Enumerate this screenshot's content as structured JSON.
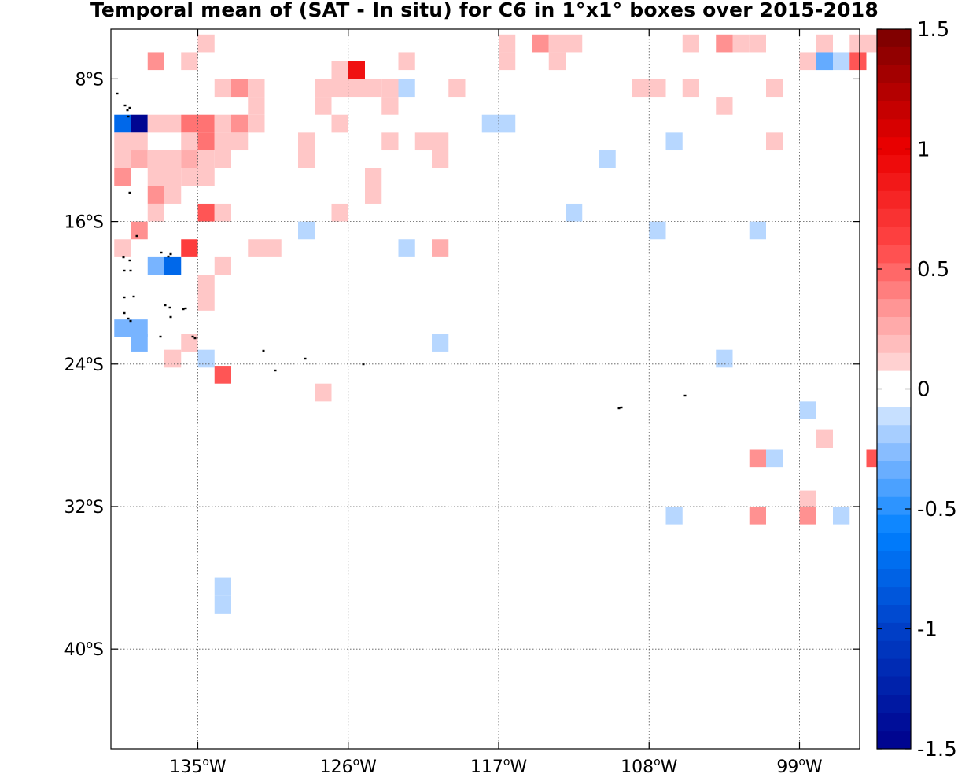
{
  "title": "Temporal mean of (SAT - In situ) for C6 in 1°x1° boxes over 2015-2018",
  "lat_ticks": [
    {
      "deg": "8",
      "hem": "S",
      "lat": -8
    },
    {
      "deg": "16",
      "hem": "S",
      "lat": -16
    },
    {
      "deg": "24",
      "hem": "S",
      "lat": -24
    },
    {
      "deg": "32",
      "hem": "S",
      "lat": -32
    },
    {
      "deg": "40",
      "hem": "S",
      "lat": -40
    }
  ],
  "lon_ticks": [
    {
      "deg": "135",
      "hem": "W",
      "lon": -135
    },
    {
      "deg": "126",
      "hem": "W",
      "lon": -126
    },
    {
      "deg": "117",
      "hem": "W",
      "lon": -117
    },
    {
      "deg": "108",
      "hem": "W",
      "lon": -108
    },
    {
      "deg": "99",
      "hem": "W",
      "lon": -99
    }
  ],
  "extent": {
    "lon_min": -140.2,
    "lon_max": -95.4,
    "lat_min": -45.6,
    "lat_max": -5.2
  },
  "colorbar": {
    "min": -1.5,
    "max": 1.5,
    "steps": 40,
    "tick_labels": [
      "1.5",
      "1",
      "0.5",
      "0",
      "-0.5",
      "-1",
      "-1.5"
    ],
    "tick_values": [
      1.5,
      1,
      0.5,
      0,
      -0.5,
      -1,
      -1.5
    ]
  },
  "chart_data": {
    "type": "heatmap",
    "title": "Temporal mean of (SAT - In situ) for C6 in 1°x1° boxes over 2015-2018",
    "xlabel": "",
    "ylabel": "",
    "cell_size_deg": 1,
    "value_range": [
      -1.5,
      1.5
    ],
    "cells": [
      {
        "lon": -134.5,
        "lat": -6.0,
        "v": 0.15
      },
      {
        "lon": -116.5,
        "lat": -6.0,
        "v": 0.15
      },
      {
        "lon": -114.5,
        "lat": -6.0,
        "v": 0.35
      },
      {
        "lon": -113.5,
        "lat": -6.0,
        "v": 0.15
      },
      {
        "lon": -112.5,
        "lat": -6.0,
        "v": 0.15
      },
      {
        "lon": -105.5,
        "lat": -6.0,
        "v": 0.15
      },
      {
        "lon": -103.5,
        "lat": -6.0,
        "v": 0.35
      },
      {
        "lon": -102.5,
        "lat": -6.0,
        "v": 0.15
      },
      {
        "lon": -101.5,
        "lat": -6.0,
        "v": 0.15
      },
      {
        "lon": -97.5,
        "lat": -6.0,
        "v": 0.15
      },
      {
        "lon": -95.5,
        "lat": -6.0,
        "v": 0.15
      },
      {
        "lon": -94.5,
        "lat": -6.0,
        "v": 0.15
      },
      {
        "lon": -137.5,
        "lat": -7.0,
        "v": 0.35
      },
      {
        "lon": -135.5,
        "lat": -7.0,
        "v": 0.15
      },
      {
        "lon": -122.5,
        "lat": -7.0,
        "v": 0.15
      },
      {
        "lon": -116.5,
        "lat": -7.0,
        "v": 0.15
      },
      {
        "lon": -113.5,
        "lat": -7.0,
        "v": 0.15
      },
      {
        "lon": -98.5,
        "lat": -7.0,
        "v": 0.15
      },
      {
        "lon": -97.5,
        "lat": -7.0,
        "v": -0.35
      },
      {
        "lon": -96.5,
        "lat": -7.0,
        "v": -0.15
      },
      {
        "lon": -95.5,
        "lat": -7.0,
        "v": 0.55
      },
      {
        "lon": -126.5,
        "lat": -7.5,
        "v": 0.15
      },
      {
        "lon": -125.5,
        "lat": -7.5,
        "v": 0.9
      },
      {
        "lon": -133.5,
        "lat": -8.5,
        "v": 0.15
      },
      {
        "lon": -132.5,
        "lat": -8.5,
        "v": 0.35
      },
      {
        "lon": -131.5,
        "lat": -8.5,
        "v": 0.15
      },
      {
        "lon": -127.5,
        "lat": -8.5,
        "v": 0.15
      },
      {
        "lon": -126.5,
        "lat": -8.5,
        "v": 0.15
      },
      {
        "lon": -125.5,
        "lat": -8.5,
        "v": 0.15
      },
      {
        "lon": -124.5,
        "lat": -8.5,
        "v": 0.15
      },
      {
        "lon": -123.5,
        "lat": -8.5,
        "v": 0.15
      },
      {
        "lon": -122.5,
        "lat": -8.5,
        "v": -0.15
      },
      {
        "lon": -119.5,
        "lat": -8.5,
        "v": 0.15
      },
      {
        "lon": -108.5,
        "lat": -8.5,
        "v": 0.15
      },
      {
        "lon": -107.5,
        "lat": -8.5,
        "v": 0.15
      },
      {
        "lon": -105.5,
        "lat": -8.5,
        "v": 0.15
      },
      {
        "lon": -100.5,
        "lat": -8.5,
        "v": 0.15
      },
      {
        "lon": -131.5,
        "lat": -9.5,
        "v": 0.15
      },
      {
        "lon": -127.5,
        "lat": -9.5,
        "v": 0.15
      },
      {
        "lon": -123.5,
        "lat": -9.5,
        "v": 0.15
      },
      {
        "lon": -103.5,
        "lat": -9.5,
        "v": 0.15
      },
      {
        "lon": -139.5,
        "lat": -10.5,
        "v": -0.75
      },
      {
        "lon": -138.5,
        "lat": -10.5,
        "v": -1.45
      },
      {
        "lon": -137.5,
        "lat": -10.5,
        "v": 0.15
      },
      {
        "lon": -136.5,
        "lat": -10.5,
        "v": 0.15
      },
      {
        "lon": -135.5,
        "lat": -10.5,
        "v": 0.45
      },
      {
        "lon": -134.5,
        "lat": -10.5,
        "v": 0.45
      },
      {
        "lon": -133.5,
        "lat": -10.5,
        "v": 0.15
      },
      {
        "lon": -132.5,
        "lat": -10.5,
        "v": 0.35
      },
      {
        "lon": -131.5,
        "lat": -10.5,
        "v": 0.15
      },
      {
        "lon": -126.5,
        "lat": -10.5,
        "v": 0.15
      },
      {
        "lon": -117.5,
        "lat": -10.5,
        "v": -0.15
      },
      {
        "lon": -116.5,
        "lat": -10.5,
        "v": -0.15
      },
      {
        "lon": -139.5,
        "lat": -11.5,
        "v": 0.15
      },
      {
        "lon": -138.5,
        "lat": -11.5,
        "v": 0.15
      },
      {
        "lon": -135.5,
        "lat": -11.5,
        "v": 0.15
      },
      {
        "lon": -134.5,
        "lat": -11.5,
        "v": 0.45
      },
      {
        "lon": -133.5,
        "lat": -11.5,
        "v": 0.15
      },
      {
        "lon": -132.5,
        "lat": -11.5,
        "v": 0.15
      },
      {
        "lon": -128.5,
        "lat": -11.5,
        "v": 0.15
      },
      {
        "lon": -123.5,
        "lat": -11.5,
        "v": 0.15
      },
      {
        "lon": -121.5,
        "lat": -11.5,
        "v": 0.15
      },
      {
        "lon": -120.5,
        "lat": -11.5,
        "v": 0.15
      },
      {
        "lon": -106.5,
        "lat": -11.5,
        "v": -0.15
      },
      {
        "lon": -100.5,
        "lat": -11.5,
        "v": 0.15
      },
      {
        "lon": -139.5,
        "lat": -12.5,
        "v": 0.15
      },
      {
        "lon": -138.5,
        "lat": -12.5,
        "v": 0.25
      },
      {
        "lon": -137.5,
        "lat": -12.5,
        "v": 0.15
      },
      {
        "lon": -136.5,
        "lat": -12.5,
        "v": 0.15
      },
      {
        "lon": -135.5,
        "lat": -12.5,
        "v": 0.25
      },
      {
        "lon": -134.5,
        "lat": -12.5,
        "v": 0.15
      },
      {
        "lon": -133.5,
        "lat": -12.5,
        "v": 0.15
      },
      {
        "lon": -128.5,
        "lat": -12.5,
        "v": 0.15
      },
      {
        "lon": -120.5,
        "lat": -12.5,
        "v": 0.15
      },
      {
        "lon": -110.5,
        "lat": -12.5,
        "v": -0.15
      },
      {
        "lon": -139.5,
        "lat": -13.5,
        "v": 0.35
      },
      {
        "lon": -137.5,
        "lat": -13.5,
        "v": 0.15
      },
      {
        "lon": -136.5,
        "lat": -13.5,
        "v": 0.15
      },
      {
        "lon": -135.5,
        "lat": -13.5,
        "v": 0.15
      },
      {
        "lon": -134.5,
        "lat": -13.5,
        "v": 0.15
      },
      {
        "lon": -124.5,
        "lat": -13.5,
        "v": 0.15
      },
      {
        "lon": -137.5,
        "lat": -14.5,
        "v": 0.35
      },
      {
        "lon": -136.5,
        "lat": -14.5,
        "v": 0.15
      },
      {
        "lon": -124.5,
        "lat": -14.5,
        "v": 0.15
      },
      {
        "lon": -137.5,
        "lat": -15.5,
        "v": 0.15
      },
      {
        "lon": -134.5,
        "lat": -15.5,
        "v": 0.55
      },
      {
        "lon": -133.5,
        "lat": -15.5,
        "v": 0.15
      },
      {
        "lon": -126.5,
        "lat": -15.5,
        "v": 0.15
      },
      {
        "lon": -112.5,
        "lat": -15.5,
        "v": -0.15
      },
      {
        "lon": -138.5,
        "lat": -16.5,
        "v": 0.35
      },
      {
        "lon": -128.5,
        "lat": -16.5,
        "v": -0.15
      },
      {
        "lon": -107.5,
        "lat": -16.5,
        "v": -0.15
      },
      {
        "lon": -101.5,
        "lat": -16.5,
        "v": -0.15
      },
      {
        "lon": -139.5,
        "lat": -17.5,
        "v": 0.15
      },
      {
        "lon": -135.5,
        "lat": -17.5,
        "v": 0.65
      },
      {
        "lon": -131.5,
        "lat": -17.5,
        "v": 0.15
      },
      {
        "lon": -130.5,
        "lat": -17.5,
        "v": 0.15
      },
      {
        "lon": -122.5,
        "lat": -17.5,
        "v": -0.15
      },
      {
        "lon": -120.5,
        "lat": -17.5,
        "v": 0.25
      },
      {
        "lon": -137.5,
        "lat": -18.5,
        "v": -0.3
      },
      {
        "lon": -136.5,
        "lat": -18.5,
        "v": -0.75
      },
      {
        "lon": -133.5,
        "lat": -18.5,
        "v": 0.15
      },
      {
        "lon": -134.5,
        "lat": -19.5,
        "v": 0.15
      },
      {
        "lon": -134.5,
        "lat": -20.5,
        "v": 0.15
      },
      {
        "lon": -139.5,
        "lat": -22.0,
        "v": -0.3
      },
      {
        "lon": -138.5,
        "lat": -22.0,
        "v": -0.3
      },
      {
        "lon": -138.5,
        "lat": -22.8,
        "v": -0.3
      },
      {
        "lon": -135.5,
        "lat": -22.8,
        "v": 0.15
      },
      {
        "lon": -120.5,
        "lat": -22.8,
        "v": -0.15
      },
      {
        "lon": -136.5,
        "lat": -23.7,
        "v": 0.15
      },
      {
        "lon": -134.5,
        "lat": -23.7,
        "v": -0.15
      },
      {
        "lon": -103.5,
        "lat": -23.7,
        "v": -0.15
      },
      {
        "lon": -133.5,
        "lat": -24.6,
        "v": 0.55
      },
      {
        "lon": -127.5,
        "lat": -25.6,
        "v": 0.15
      },
      {
        "lon": -98.5,
        "lat": -26.6,
        "v": -0.15
      },
      {
        "lon": -97.5,
        "lat": -28.2,
        "v": 0.15
      },
      {
        "lon": -101.5,
        "lat": -29.3,
        "v": 0.35
      },
      {
        "lon": -100.5,
        "lat": -29.3,
        "v": -0.15
      },
      {
        "lon": -94.5,
        "lat": -29.3,
        "v": 0.55
      },
      {
        "lon": -98.5,
        "lat": -31.6,
        "v": 0.15
      },
      {
        "lon": -106.5,
        "lat": -32.5,
        "v": -0.15
      },
      {
        "lon": -101.5,
        "lat": -32.5,
        "v": 0.35
      },
      {
        "lon": -98.5,
        "lat": -32.5,
        "v": 0.35
      },
      {
        "lon": -96.5,
        "lat": -32.5,
        "v": -0.15
      },
      {
        "lon": -133.5,
        "lat": -36.5,
        "v": -0.15
      },
      {
        "lon": -133.5,
        "lat": -37.5,
        "v": -0.15
      }
    ]
  }
}
